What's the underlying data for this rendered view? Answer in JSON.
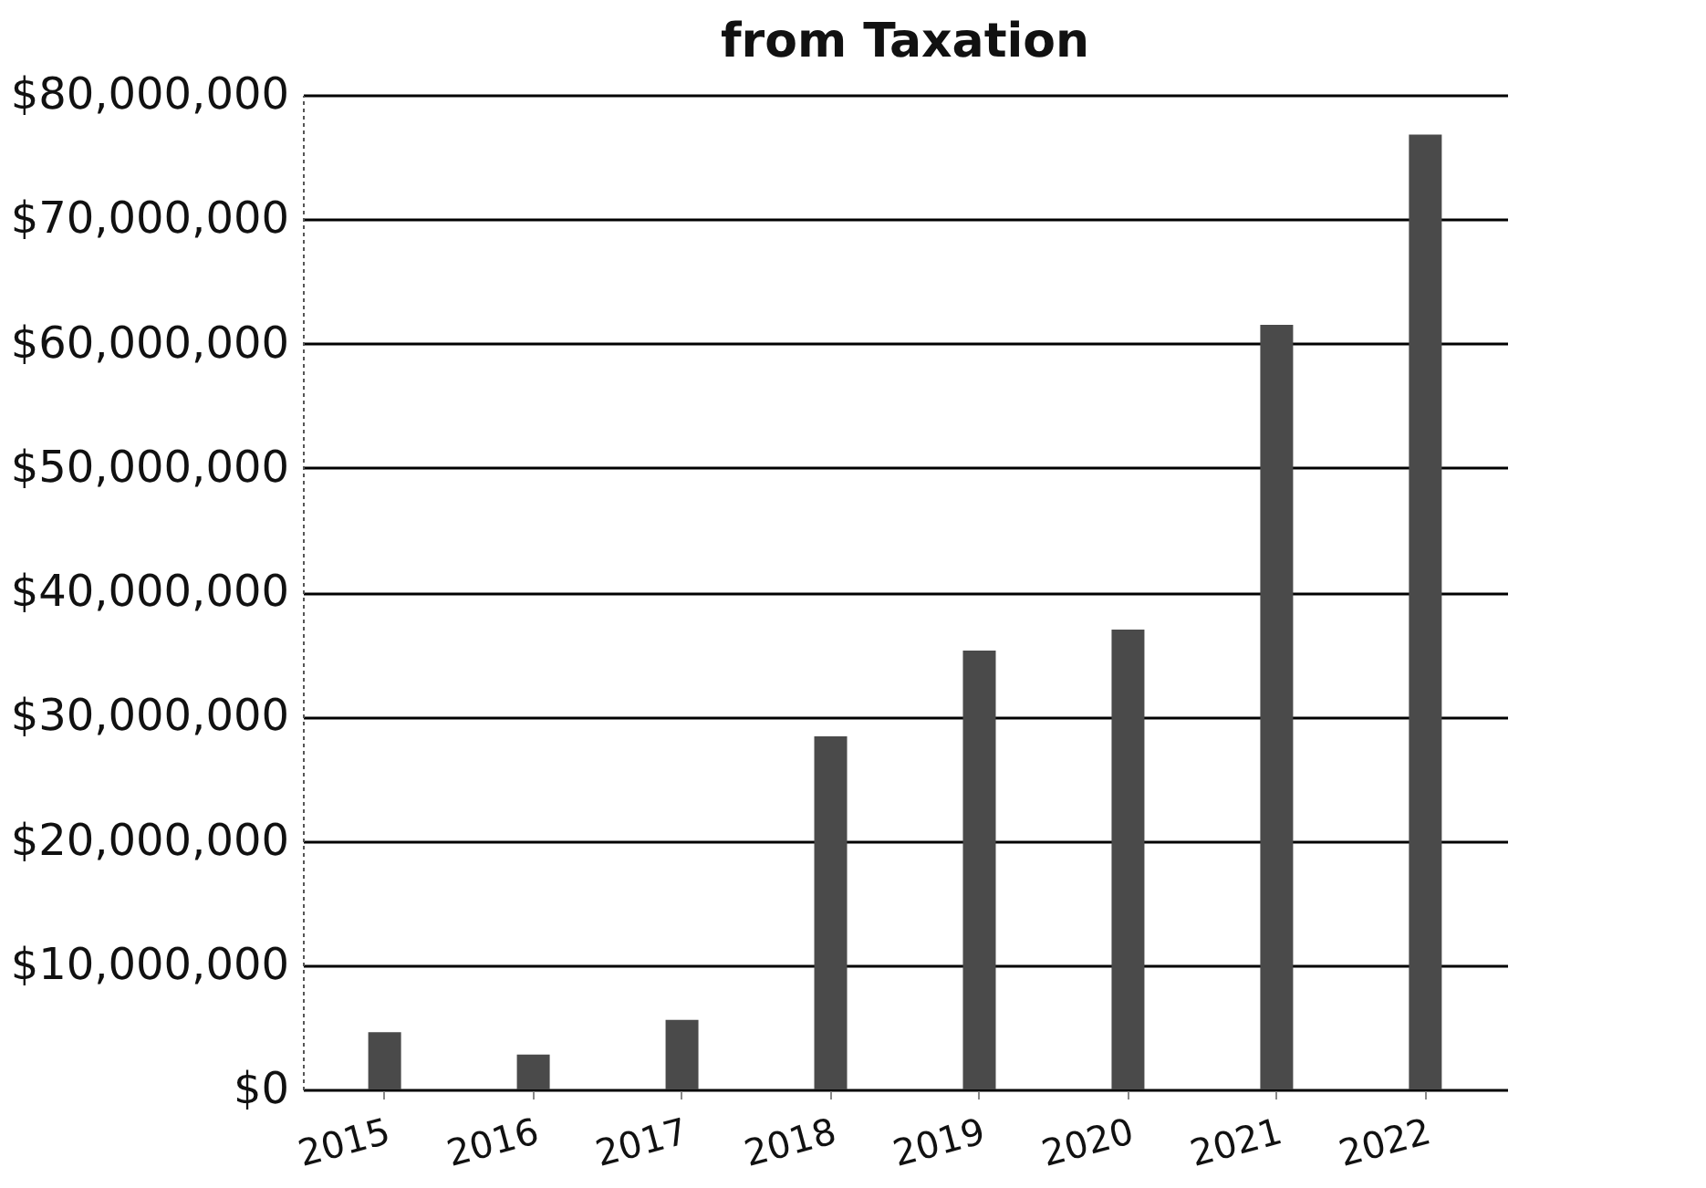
{
  "chart_data": {
    "type": "bar",
    "title": "from Taxation",
    "categories": [
      "2015",
      "2016",
      "2017",
      "2018",
      "2019",
      "2020",
      "2021",
      "2022"
    ],
    "values": [
      4600000,
      2800000,
      5600000,
      28400000,
      35300000,
      37000000,
      61500000,
      76800000
    ],
    "color": "#4a4a4a",
    "ylim": [
      0,
      80000000
    ],
    "yticks": [
      {
        "value": 0,
        "label": "$0"
      },
      {
        "value": 10000000,
        "label": "$10,000,000"
      },
      {
        "value": 20000000,
        "label": "$20,000,000"
      },
      {
        "value": 30000000,
        "label": "$30,000,000"
      },
      {
        "value": 40000000,
        "label": "$40,000,000"
      },
      {
        "value": 50000000,
        "label": "$50,000,000"
      },
      {
        "value": 60000000,
        "label": "$60,000,000"
      },
      {
        "value": 70000000,
        "label": "$70,000,000"
      },
      {
        "value": 80000000,
        "label": "$80,000,000"
      }
    ],
    "grid": "y"
  }
}
